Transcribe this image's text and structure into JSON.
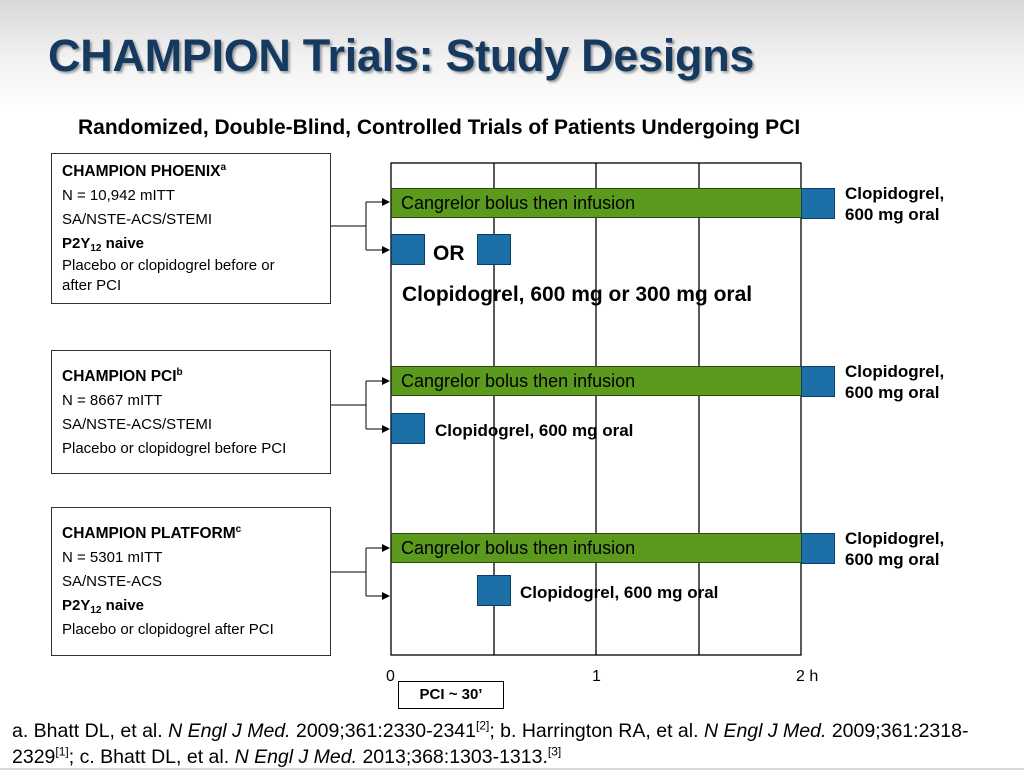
{
  "title": "CHAMPION Trials: Study Designs",
  "subtitle": "Randomized, Double-Blind, Controlled Trials of Patients Undergoing PCI",
  "colors": {
    "title": "#163a5f",
    "infusion_bar": "#5b9a1c",
    "oral_dose_box": "#1d6fa8"
  },
  "trials": [
    {
      "name": "CHAMPION PHOENIX",
      "sup": "a",
      "n": "N = 10,942 mITT",
      "population": "SA/NSTE-ACS/STEMI",
      "p2y12_prefix": "P2Y",
      "p2y12_sub": "12",
      "p2y12_suffix": " naive",
      "comparator_line1": "Placebo or clopidogrel  before or",
      "comparator_line2": "after PCI",
      "infusion_label": "Cangrelor bolus then infusion",
      "post_line1": "Clopidogrel,",
      "post_line2": "600 mg oral",
      "or_label": "OR",
      "control_label": "Clopidogrel, 600 mg or 300 mg oral"
    },
    {
      "name": "CHAMPION PCI",
      "sup": "b",
      "n": "N = 8667 mITT",
      "population": "SA/NSTE-ACS/STEMI",
      "comparator": "Placebo or clopidogrel before PCI",
      "infusion_label": "Cangrelor bolus then infusion",
      "post_line1": "Clopidogrel,",
      "post_line2": "600 mg oral",
      "control_label": "Clopidogrel, 600 mg oral"
    },
    {
      "name": "CHAMPION PLATFORM",
      "sup": "c",
      "n": "N = 5301 mITT",
      "population": "SA/NSTE-ACS",
      "p2y12_prefix": "P2Y",
      "p2y12_sub": "12",
      "p2y12_suffix": " naive",
      "comparator": "Placebo or clopidogrel after PCI",
      "infusion_label": "Cangrelor bolus then infusion",
      "post_line1": "Clopidogrel,",
      "post_line2": "600 mg oral",
      "control_label": "Clopidogrel, 600 mg oral"
    }
  ],
  "axis": {
    "tick_0": "0",
    "tick_1": "1",
    "tick_2": "2 h",
    "pci_label": "PCI ~ 30’"
  },
  "references": {
    "a_pre": "a. Bhatt DL, et al. ",
    "a_journal": "N Engl J Med.",
    "a_cite": " 2009;361:2330-2341",
    "a_sup": "[2]",
    "b_pre": "; b. Harrington RA, et al. ",
    "b_journal": "N Engl J Med.",
    "b_cite": " 2009;361:2318-2329",
    "b_sup": "[1]",
    "c_pre": "; c. Bhatt DL, et al. ",
    "c_journal": "N Engl J Med.",
    "c_cite": " 2013;368:1303-1313.",
    "c_sup": "[3]"
  }
}
